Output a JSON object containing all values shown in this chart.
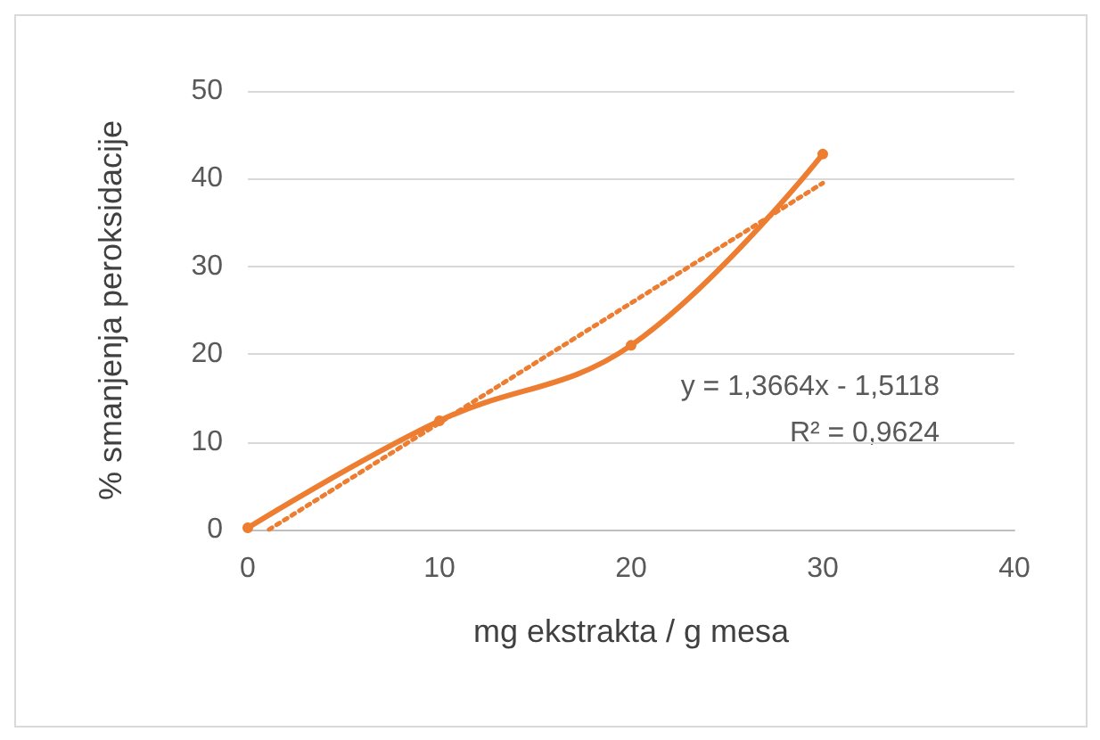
{
  "chart_data": {
    "type": "line",
    "xlabel": "mg ekstrakta / g mesa",
    "ylabel": "% smanjenja peroksidacije",
    "x": [
      0,
      10,
      20,
      30
    ],
    "series": [
      {
        "color": "#ed7d31",
        "values": [
          0.2,
          12.4,
          21,
          42.8
        ],
        "marker": "circle",
        "line_style": "solid"
      },
      {
        "type": "line",
        "color": "#ed7d31",
        "x": [
          1.1064,
          30
        ],
        "values": [
          0,
          39.5
        ],
        "marker": "none",
        "line_style": "dotted"
      }
    ],
    "xlim": [
      0,
      40
    ],
    "xticks": [
      0,
      10,
      20,
      30,
      40
    ],
    "ylim": [
      0,
      50
    ],
    "yticks": [
      0,
      10,
      20,
      30,
      40,
      50
    ],
    "grid": "y",
    "annotations": [
      "y = 1,3664x - 1,5118",
      "R² = 0,9624"
    ]
  }
}
